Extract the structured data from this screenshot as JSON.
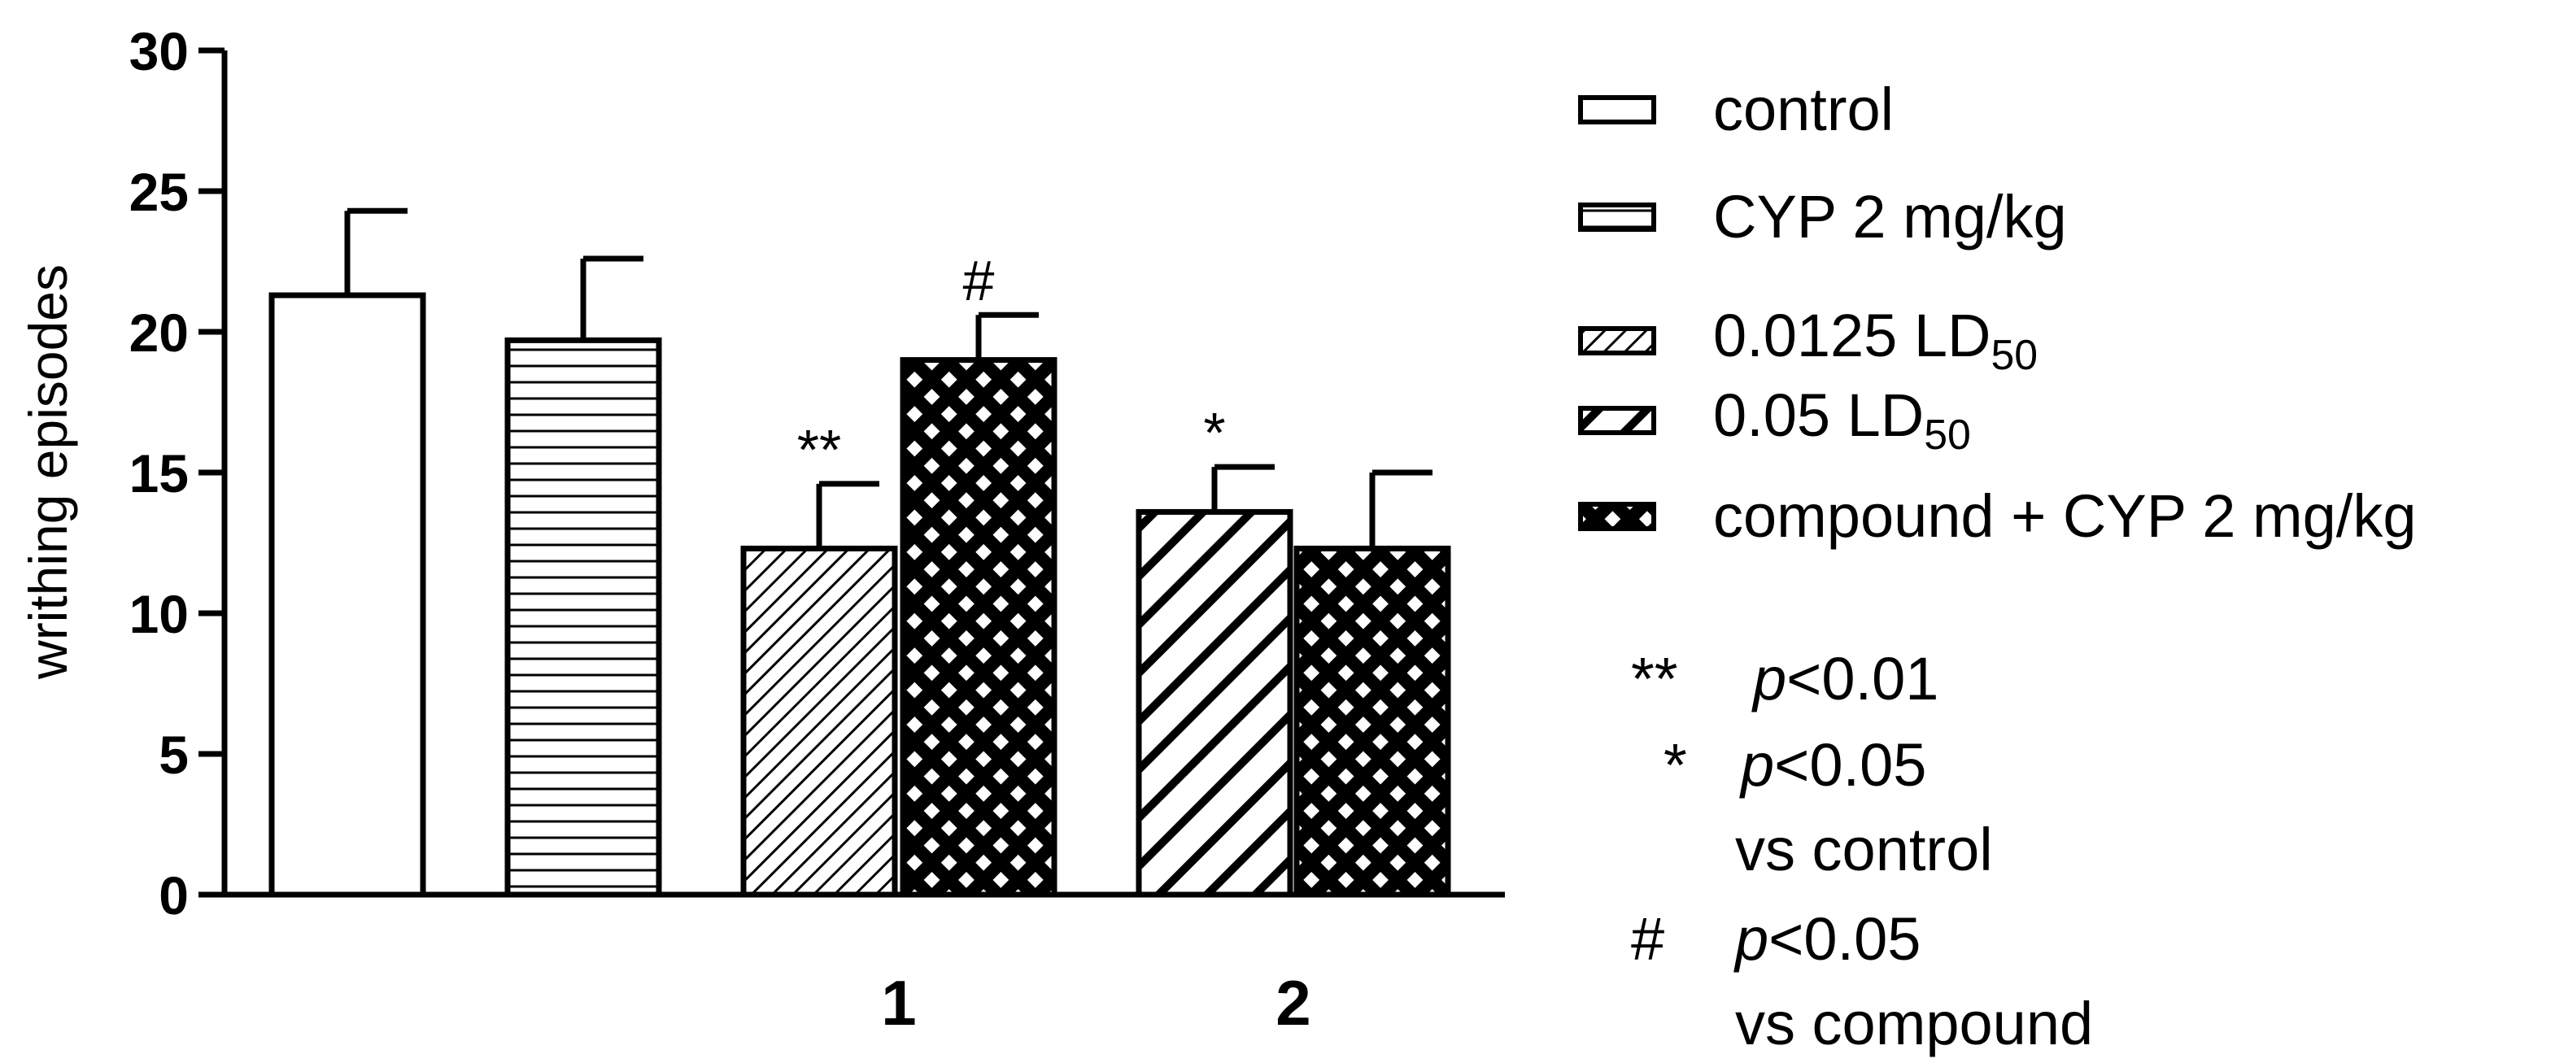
{
  "chart_data": {
    "type": "bar",
    "ylabel": "writhing episodes",
    "ylim": [
      0,
      30
    ],
    "yticks": [
      "0",
      "5",
      "10",
      "15",
      "20",
      "25",
      "30"
    ],
    "group_labels": [
      "",
      "1",
      "2"
    ],
    "bars": [
      {
        "series": "control",
        "value": 21.3,
        "error": 3.0,
        "annotation": ""
      },
      {
        "series": "CYP 2 mg/kg",
        "value": 19.7,
        "error": 2.9,
        "annotation": ""
      },
      {
        "series": "0.0125 LD50",
        "value": 12.3,
        "error": 2.3,
        "annotation": "**"
      },
      {
        "series": "compound + CYP 2 mg/kg",
        "value": 19.0,
        "error": 1.6,
        "annotation": "#"
      },
      {
        "series": "0.05 LD50",
        "value": 13.6,
        "error": 1.6,
        "annotation": "*"
      },
      {
        "series": "compound + CYP 2 mg/kg",
        "value": 12.3,
        "error": 2.7,
        "annotation": ""
      }
    ],
    "legend_position": "right"
  },
  "legend": {
    "control": "control",
    "cyp": "CYP 2 mg/kg",
    "ld0125_prefix": "0.0125 LD",
    "ld0125_sub": "50",
    "ld005_prefix": "0.05 LD",
    "ld005_sub": "50",
    "combo": "compound + CYP 2 mg/kg"
  },
  "significance": {
    "p01_mark": "**",
    "p01_p": "p",
    "p01_text": "<0.01",
    "p05_mark": "*",
    "p05_p": "p",
    "p05_text": "<0.05",
    "vs_control": "vs control",
    "hash_mark": "#",
    "hash_p": "p",
    "hash_text": "<0.05",
    "vs_compound": "vs compound"
  }
}
